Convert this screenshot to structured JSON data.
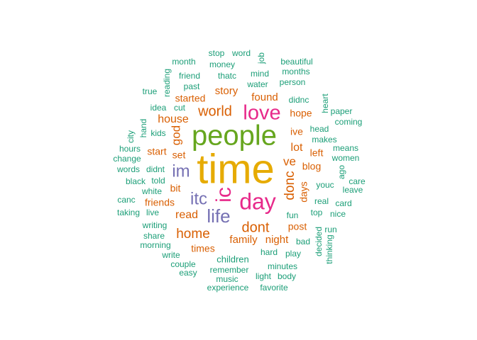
{
  "palette": {
    "teal": "#1b9e77",
    "orange": "#d95f02",
    "purple": "#7570b3",
    "magenta": "#e7298a",
    "green": "#66a61e",
    "gold": "#e6ab02"
  },
  "words": [
    {
      "text": "time",
      "color": "gold"
    },
    {
      "text": "people",
      "color": "green"
    },
    {
      "text": "day",
      "color": "magenta"
    },
    {
      "text": "love",
      "color": "magenta"
    },
    {
      "text": "ic",
      "color": "magenta"
    },
    {
      "text": "life",
      "color": "purple"
    },
    {
      "text": "itc",
      "color": "purple"
    },
    {
      "text": "im",
      "color": "purple"
    },
    {
      "text": "dont",
      "color": "orange"
    },
    {
      "text": "world",
      "color": "orange"
    },
    {
      "text": "home",
      "color": "orange"
    },
    {
      "text": "donc",
      "color": "orange"
    },
    {
      "text": "god",
      "color": "orange"
    },
    {
      "text": "house",
      "color": "orange"
    },
    {
      "text": "read",
      "color": "orange"
    },
    {
      "text": "family",
      "color": "orange"
    },
    {
      "text": "night",
      "color": "orange"
    },
    {
      "text": "lot",
      "color": "orange"
    },
    {
      "text": "ve",
      "color": "orange"
    },
    {
      "text": "story",
      "color": "orange"
    },
    {
      "text": "found",
      "color": "orange"
    },
    {
      "text": "friends",
      "color": "orange"
    },
    {
      "text": "days",
      "color": "orange"
    },
    {
      "text": "blog",
      "color": "orange"
    },
    {
      "text": "times",
      "color": "orange"
    },
    {
      "text": "post",
      "color": "orange"
    },
    {
      "text": "bit",
      "color": "orange"
    },
    {
      "text": "started",
      "color": "orange"
    },
    {
      "text": "start",
      "color": "orange"
    },
    {
      "text": "set",
      "color": "orange"
    },
    {
      "text": "hope",
      "color": "orange"
    },
    {
      "text": "ive",
      "color": "orange"
    },
    {
      "text": "left",
      "color": "orange"
    },
    {
      "text": "children",
      "color": "teal"
    },
    {
      "text": "remember",
      "color": "teal"
    },
    {
      "text": "hard",
      "color": "teal"
    },
    {
      "text": "minutes",
      "color": "teal"
    },
    {
      "text": "mind",
      "color": "teal"
    },
    {
      "text": "water",
      "color": "teal"
    },
    {
      "text": "head",
      "color": "teal"
    },
    {
      "text": "makes",
      "color": "teal"
    },
    {
      "text": "youc",
      "color": "teal"
    },
    {
      "text": "real",
      "color": "teal"
    },
    {
      "text": "top",
      "color": "teal"
    },
    {
      "text": "bad",
      "color": "teal"
    },
    {
      "text": "fun",
      "color": "teal"
    },
    {
      "text": "play",
      "color": "teal"
    },
    {
      "text": "past",
      "color": "teal"
    },
    {
      "text": "thatc",
      "color": "teal"
    },
    {
      "text": "didnc",
      "color": "teal"
    },
    {
      "text": "person",
      "color": "teal"
    },
    {
      "text": "months",
      "color": "teal"
    },
    {
      "text": "idea",
      "color": "teal"
    },
    {
      "text": "cut",
      "color": "teal"
    },
    {
      "text": "kids",
      "color": "teal"
    },
    {
      "text": "didnt",
      "color": "teal"
    },
    {
      "text": "told",
      "color": "teal"
    },
    {
      "text": "black",
      "color": "teal"
    },
    {
      "text": "white",
      "color": "teal"
    },
    {
      "text": "live",
      "color": "teal"
    },
    {
      "text": "writing",
      "color": "teal"
    },
    {
      "text": "share",
      "color": "teal"
    },
    {
      "text": "morning",
      "color": "teal"
    },
    {
      "text": "write",
      "color": "teal"
    },
    {
      "text": "couple",
      "color": "teal"
    },
    {
      "text": "easy",
      "color": "teal"
    },
    {
      "text": "music",
      "color": "teal"
    },
    {
      "text": "experience",
      "color": "teal"
    },
    {
      "text": "light",
      "color": "teal"
    },
    {
      "text": "body",
      "color": "teal"
    },
    {
      "text": "favorite",
      "color": "teal"
    },
    {
      "text": "month",
      "color": "teal"
    },
    {
      "text": "stop",
      "color": "teal"
    },
    {
      "text": "word",
      "color": "teal"
    },
    {
      "text": "money",
      "color": "teal"
    },
    {
      "text": "job",
      "color": "teal"
    },
    {
      "text": "beautiful",
      "color": "teal"
    },
    {
      "text": "friend",
      "color": "teal"
    },
    {
      "text": "reading",
      "color": "teal"
    },
    {
      "text": "true",
      "color": "teal"
    },
    {
      "text": "heart",
      "color": "teal"
    },
    {
      "text": "paper",
      "color": "teal"
    },
    {
      "text": "coming",
      "color": "teal"
    },
    {
      "text": "means",
      "color": "teal"
    },
    {
      "text": "women",
      "color": "teal"
    },
    {
      "text": "ago",
      "color": "teal"
    },
    {
      "text": "care",
      "color": "teal"
    },
    {
      "text": "leave",
      "color": "teal"
    },
    {
      "text": "card",
      "color": "teal"
    },
    {
      "text": "nice",
      "color": "teal"
    },
    {
      "text": "run",
      "color": "teal"
    },
    {
      "text": "decided",
      "color": "teal"
    },
    {
      "text": "thinking",
      "color": "teal"
    },
    {
      "text": "city",
      "color": "teal"
    },
    {
      "text": "hand",
      "color": "teal"
    },
    {
      "text": "hours",
      "color": "teal"
    },
    {
      "text": "change",
      "color": "teal"
    },
    {
      "text": "words",
      "color": "teal"
    },
    {
      "text": "canc",
      "color": "teal"
    },
    {
      "text": "taking",
      "color": "teal"
    }
  ]
}
